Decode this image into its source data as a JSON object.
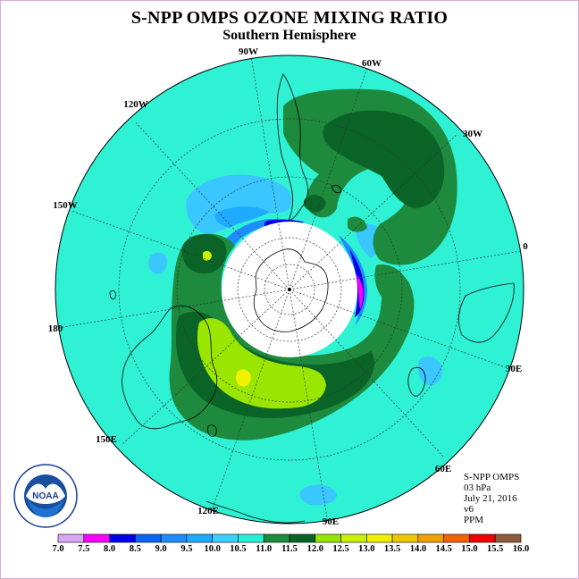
{
  "title": "S-NPP OMPS OZONE MIXING RATIO",
  "subtitle": "Southern Hemisphere",
  "info": {
    "product": "S-NPP OMPS",
    "level": "03 hPa",
    "date": "July 21, 2016",
    "version": "v6",
    "units": "PPM"
  },
  "longitude_labels": {
    "lon_90w": "90W",
    "lon_60w": "60W",
    "lon_30w": "30W",
    "lon_0": "0",
    "lon_30e": "30E",
    "lon_60e": "60E",
    "lon_90e": "90E",
    "lon_120e": "120E",
    "lon_150e": "150E",
    "lon_180": "180",
    "lon_150w": "150W",
    "lon_120w": "120W"
  },
  "logo": {
    "text": "NOAA",
    "ring_text": "NATIONAL OCEANIC AND ATMOSPHERIC ADMINISTRATION · U.S. DEPARTMENT OF COMMERCE"
  },
  "colorbar": {
    "labels": [
      "7.0",
      "7.5",
      "8.0",
      "8.5",
      "9.0",
      "9.5",
      "10.0",
      "10.5",
      "11.0",
      "11.5",
      "12.0",
      "12.5",
      "13.0",
      "13.5",
      "14.0",
      "14.5",
      "15.0",
      "15.5",
      "16.0"
    ],
    "colors": [
      "#b27fff",
      "#d9a6f2",
      "#ff00ff",
      "#0000e6",
      "#0a64f0",
      "#1e8cff",
      "#1eaaff",
      "#3cd0ff",
      "#28f0d7",
      "#1e8c3c",
      "#0a6428",
      "#96e600",
      "#c8f000",
      "#f0f000",
      "#f0c800",
      "#f0a000",
      "#f06400",
      "#f00000",
      "#8c5a3c"
    ]
  },
  "colors": {
    "background_field": "#2ff2d4",
    "green_mid": "#1d8a3d",
    "green_dark": "#0b6427",
    "lime": "#9ae600",
    "blue_light": "#3ac6ff",
    "blue_mid": "#1e8cff",
    "blue_dark": "#0000e6",
    "magenta": "#ff00ff"
  }
}
